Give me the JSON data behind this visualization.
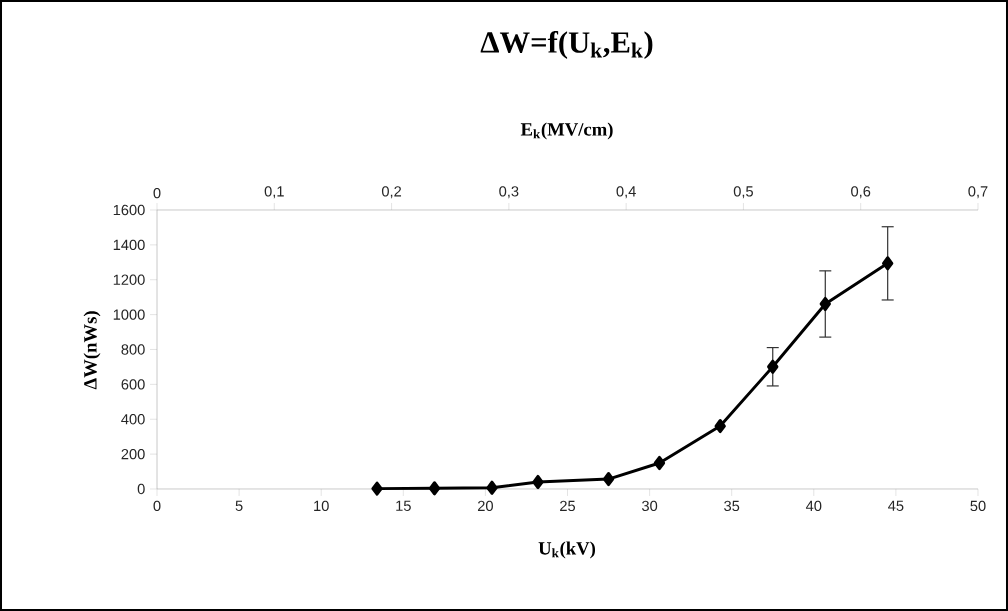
{
  "chart_data": {
    "type": "line",
    "title": "ΔW=f(U$_{k}$,E$_{k}$)",
    "xlabel": "U$_{k}$(kV)",
    "ylabel": "ΔW(nWs)",
    "x2label": "E$_{k}$(MV/cm)",
    "xlim": [
      0,
      50
    ],
    "xticks": [
      0,
      5,
      10,
      15,
      20,
      25,
      30,
      35,
      40,
      45,
      50
    ],
    "x2lim": [
      0,
      0.7
    ],
    "x2ticks": [
      0,
      {
        "value": 0.1,
        "label": "0,1"
      },
      {
        "value": 0.2,
        "label": "0,2"
      },
      {
        "value": 0.3,
        "label": "0,3"
      },
      {
        "value": 0.4,
        "label": "0,4"
      },
      {
        "value": 0.5,
        "label": "0,5"
      },
      {
        "value": 0.6,
        "label": "0,6"
      },
      {
        "value": 0.7,
        "label": "0,7"
      }
    ],
    "ylim": [
      0,
      1600
    ],
    "yticks": [
      0,
      200,
      400,
      600,
      800,
      1000,
      1200,
      1400,
      1600
    ],
    "grid": false,
    "marker": "diamond",
    "line_style": "solid",
    "series": [
      {
        "color": "#000000",
        "x": [
          13.4,
          16.9,
          20.4,
          23.2,
          27.5,
          30.6,
          34.3,
          37.5,
          40.7,
          44.5
        ],
        "values": [
          2,
          4,
          7,
          40,
          57,
          149,
          361,
          701,
          1061,
          1294
        ],
        "errors": [
          null,
          null,
          null,
          null,
          null,
          null,
          null,
          110,
          190,
          210
        ]
      }
    ]
  }
}
